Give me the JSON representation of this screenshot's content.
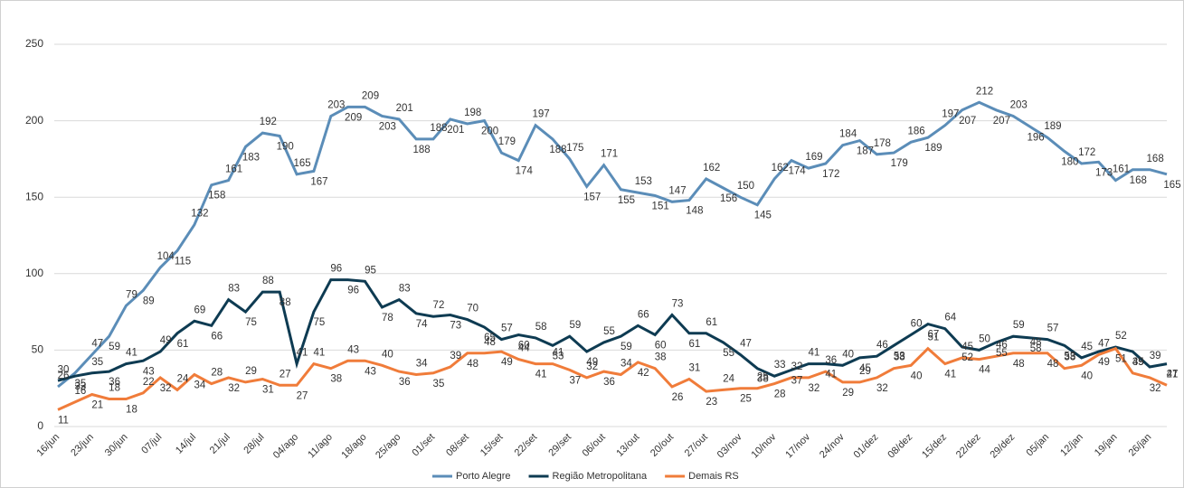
{
  "chart_data": {
    "type": "line",
    "categories": [
      "16/jun",
      null,
      "23/jun",
      null,
      "30/jun",
      null,
      "07/jul",
      null,
      "14/jul",
      null,
      "21/jul",
      null,
      "28/jul",
      null,
      "04/ago",
      null,
      "11/ago",
      null,
      "18/ago",
      null,
      "25/ago",
      null,
      "01/set",
      null,
      "08/set",
      null,
      "15/set",
      null,
      "22/set",
      null,
      "29/set",
      null,
      "06/out",
      null,
      "13/out",
      null,
      "20/out",
      null,
      "27/out",
      null,
      "03/nov",
      null,
      "10/nov",
      null,
      "17/nov",
      null,
      "24/nov",
      null,
      "01/dez",
      null,
      "08/dez",
      null,
      "15/dez",
      null,
      "22/dez",
      null,
      "29/dez",
      null,
      "05/jan",
      null,
      "12/jan",
      null,
      "19/jan",
      null,
      "26/jan",
      null
    ],
    "series": [
      {
        "name": "Porto Alegre",
        "color": "#5b8db8",
        "values": [
          26,
          35,
          47,
          59,
          79,
          89,
          104,
          115,
          132,
          158,
          161,
          183,
          192,
          190,
          165,
          167,
          203,
          209,
          209,
          203,
          201,
          188,
          188,
          201,
          198,
          200,
          179,
          174,
          197,
          188,
          175,
          157,
          171,
          155,
          153,
          151,
          147,
          148,
          162,
          156,
          150,
          145,
          162,
          174,
          169,
          172,
          184,
          187,
          178,
          179,
          186,
          189,
          197,
          207,
          212,
          207,
          203,
          196,
          189,
          180,
          172,
          173,
          161,
          168,
          168,
          165
        ]
      },
      {
        "name": "Região Metropolitana",
        "color": "#0e3b52",
        "values": [
          30,
          33,
          35,
          36,
          41,
          43,
          49,
          61,
          69,
          66,
          83,
          75,
          88,
          88,
          41,
          75,
          96,
          96,
          95,
          78,
          83,
          74,
          72,
          73,
          70,
          65,
          57,
          60,
          58,
          53,
          59,
          49,
          55,
          59,
          66,
          60,
          73,
          61,
          61,
          55,
          47,
          38,
          33,
          37,
          41,
          41,
          40,
          45,
          46,
          53,
          60,
          67,
          64,
          52,
          50,
          55,
          59,
          58,
          57,
          53,
          45,
          49,
          52,
          49,
          39,
          41
        ]
      },
      {
        "name": "Demais RS",
        "color": "#f07c3a",
        "values": [
          11,
          16,
          21,
          18,
          18,
          22,
          32,
          24,
          34,
          28,
          32,
          29,
          31,
          27,
          27,
          41,
          38,
          43,
          43,
          40,
          36,
          34,
          35,
          39,
          48,
          48,
          49,
          44,
          41,
          41,
          37,
          32,
          36,
          34,
          42,
          38,
          26,
          31,
          23,
          24,
          25,
          25,
          28,
          32,
          32,
          36,
          29,
          29,
          32,
          38,
          40,
          51,
          41,
          45,
          44,
          46,
          48,
          48,
          48,
          38,
          40,
          47,
          51,
          35,
          32,
          27
        ]
      }
    ],
    "ylim": [
      0,
      250
    ],
    "yticks": [
      0,
      50,
      100,
      150,
      200,
      250
    ],
    "grid": true
  }
}
